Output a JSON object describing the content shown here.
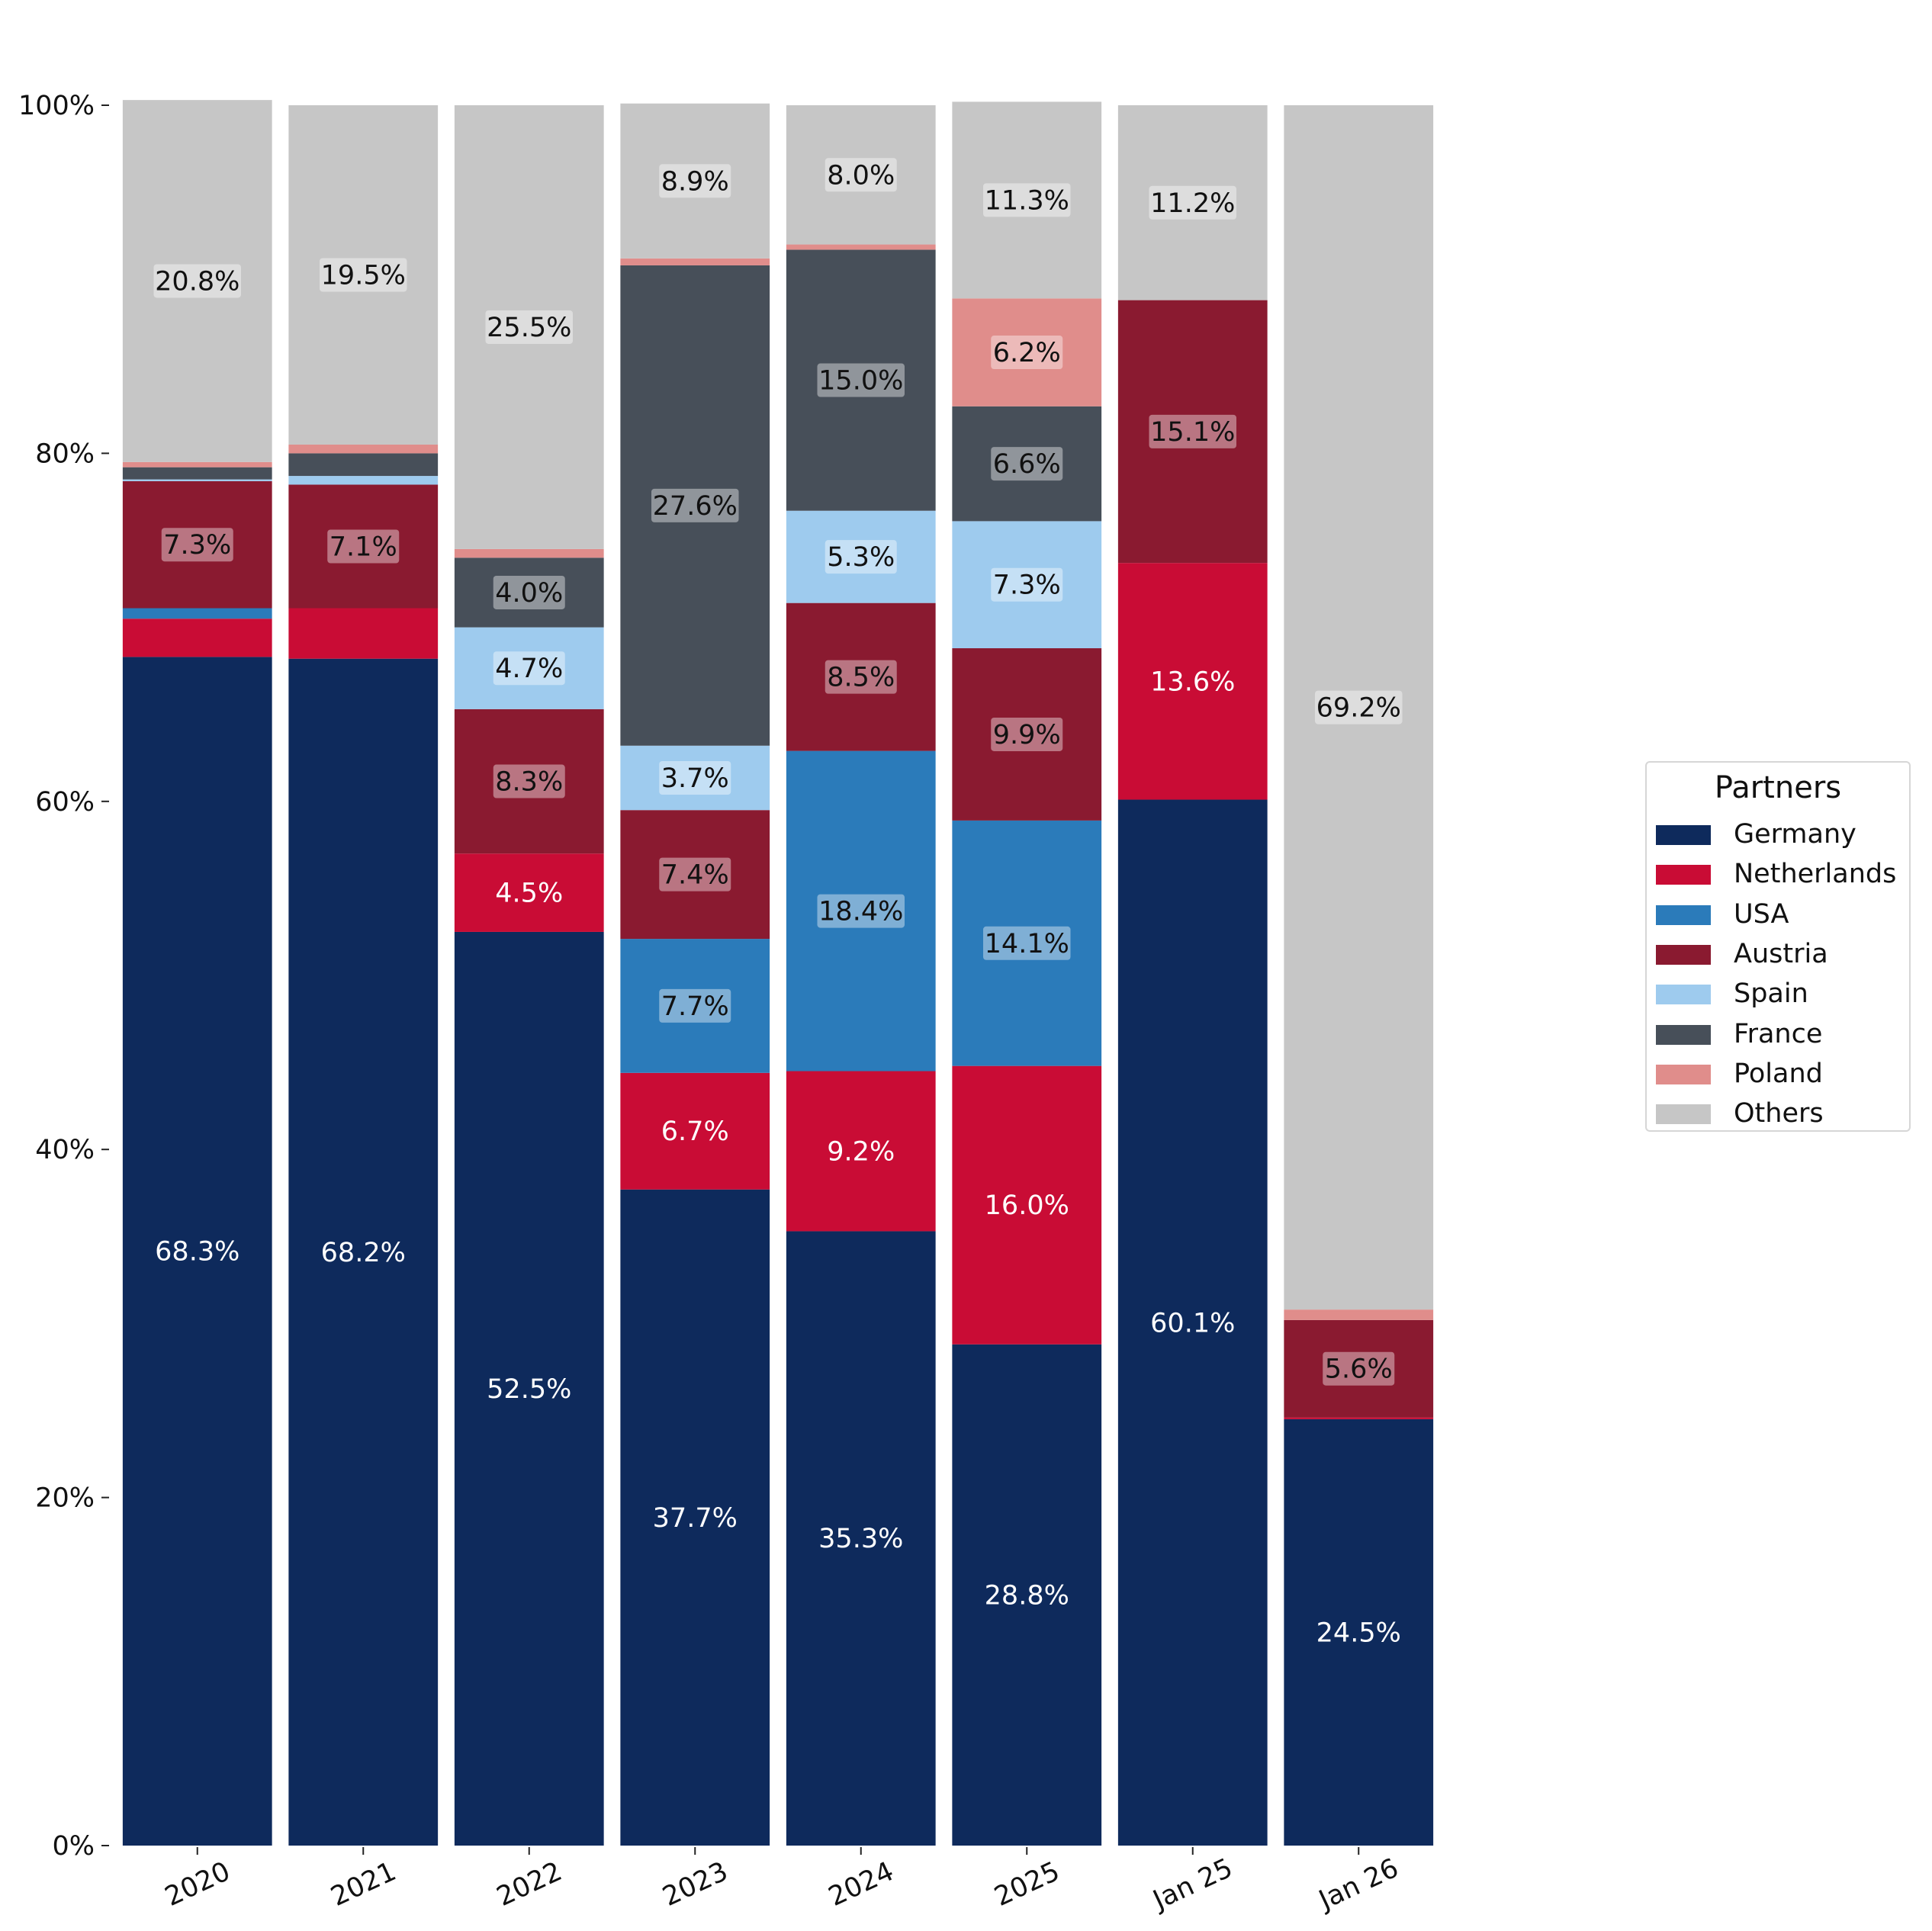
{
  "chart_data": {
    "type": "bar",
    "stacked": true,
    "categories": [
      "2020",
      "2021",
      "2022",
      "2023",
      "2024",
      "2025",
      "Jan 25",
      "Jan 26"
    ],
    "ylim": [
      0,
      100
    ],
    "yticks": [
      "0%",
      "20%",
      "40%",
      "60%",
      "80%",
      "100%"
    ],
    "legend": {
      "title": "Partners",
      "position": "right"
    },
    "series": [
      {
        "name": "Germany",
        "color": "#0e2a5c",
        "values": [
          68.3,
          68.2,
          52.5,
          37.7,
          35.3,
          28.8,
          60.1,
          24.5
        ]
      },
      {
        "name": "Netherlands",
        "color": "#c90c35",
        "values": [
          2.2,
          2.9,
          4.5,
          6.7,
          9.2,
          16.0,
          13.6,
          0.1
        ]
      },
      {
        "name": "USA",
        "color": "#2b7bba",
        "values": [
          0.6,
          0.0,
          0.0,
          7.7,
          18.4,
          14.1,
          0.0,
          0.0
        ]
      },
      {
        "name": "Austria",
        "color": "#8a1a30",
        "values": [
          7.3,
          7.1,
          8.3,
          7.4,
          8.5,
          9.9,
          15.1,
          5.6
        ]
      },
      {
        "name": "Spain",
        "color": "#9ecbee",
        "values": [
          0.1,
          0.5,
          4.7,
          3.7,
          5.3,
          7.3,
          0.0,
          0.0
        ]
      },
      {
        "name": "France",
        "color": "#474f59",
        "values": [
          0.7,
          1.3,
          4.0,
          27.6,
          15.0,
          6.6,
          0.0,
          0.0
        ]
      },
      {
        "name": "Poland",
        "color": "#e08d8b",
        "values": [
          0.3,
          0.5,
          0.5,
          0.4,
          0.3,
          6.2,
          0.0,
          0.6
        ]
      },
      {
        "name": "Others",
        "color": "#c6c6c6",
        "values": [
          20.8,
          19.5,
          25.5,
          8.9,
          8.0,
          11.3,
          11.2,
          69.2
        ]
      }
    ],
    "data_labels": [
      [
        "68.3%",
        "",
        "",
        "7.3%",
        "",
        "",
        "",
        "20.8%"
      ],
      [
        "68.2%",
        "",
        "",
        "7.1%",
        "",
        "",
        "",
        "19.5%"
      ],
      [
        "52.5%",
        "4.5%",
        "",
        "8.3%",
        "4.7%",
        "4.0%",
        "",
        "25.5%"
      ],
      [
        "37.7%",
        "6.7%",
        "7.7%",
        "7.4%",
        "3.7%",
        "27.6%",
        "",
        "8.9%"
      ],
      [
        "35.3%",
        "9.2%",
        "18.4%",
        "8.5%",
        "5.3%",
        "15.0%",
        "",
        "8.0%"
      ],
      [
        "28.8%",
        "16.0%",
        "14.1%",
        "9.9%",
        "7.3%",
        "6.6%",
        "6.2%",
        "11.3%"
      ],
      [
        "60.1%",
        "13.6%",
        "",
        "15.1%",
        "",
        "",
        "",
        "11.2%"
      ],
      [
        "24.5%",
        "",
        "",
        "5.6%",
        "",
        "",
        "",
        "69.2%"
      ]
    ]
  }
}
